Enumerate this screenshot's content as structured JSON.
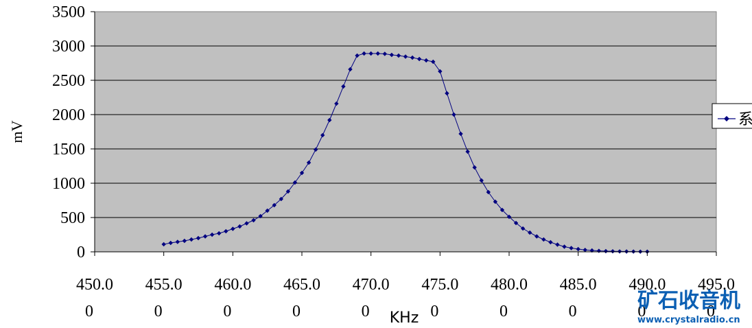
{
  "chart_data": {
    "type": "line",
    "xlabel": "KHz",
    "ylabel": "mV",
    "xlim": [
      450,
      495
    ],
    "ylim": [
      0,
      3500
    ],
    "x_ticks": [
      450,
      455,
      460,
      465,
      470,
      475,
      480,
      485,
      490,
      495
    ],
    "x_tick_labels": [
      [
        "450.0",
        "0"
      ],
      [
        "455.0",
        "0"
      ],
      [
        "460.0",
        "0"
      ],
      [
        "465.0",
        "0"
      ],
      [
        "470.0",
        "0"
      ],
      [
        "475.0",
        "0"
      ],
      [
        "480.0",
        "0"
      ],
      [
        "485.0",
        "0"
      ],
      [
        "490.0",
        "0"
      ],
      [
        "495.0",
        "0"
      ]
    ],
    "y_ticks": [
      0,
      500,
      1000,
      1500,
      2000,
      2500,
      3000,
      3500
    ],
    "y_tick_labels": [
      "0",
      "500",
      "1000",
      "1500",
      "2000",
      "2500",
      "3000",
      "3500"
    ],
    "grid": true,
    "legend_position": "right (clipped)",
    "legend_label": "系",
    "series": [
      {
        "color": "#000080",
        "x": [
          455,
          455.5,
          456,
          456.5,
          457,
          457.5,
          458,
          458.5,
          459,
          459.5,
          460,
          460.5,
          461,
          461.5,
          462,
          462.5,
          463,
          463.5,
          464,
          464.5,
          465,
          465.5,
          466,
          466.5,
          467,
          467.5,
          468,
          468.5,
          469,
          469.5,
          470,
          470.5,
          471,
          471.5,
          472,
          472.5,
          473,
          473.5,
          474,
          474.5,
          475,
          475.5,
          476,
          476.5,
          477,
          477.5,
          478,
          478.5,
          479,
          479.5,
          480,
          480.5,
          481,
          481.5,
          482,
          482.5,
          483,
          483.5,
          484,
          484.5,
          485,
          485.5,
          486,
          486.5,
          487,
          487.5,
          488,
          488.5,
          489,
          489.5,
          490
        ],
        "y": [
          110,
          130,
          145,
          160,
          180,
          200,
          225,
          250,
          270,
          300,
          335,
          370,
          415,
          460,
          520,
          600,
          680,
          770,
          880,
          1010,
          1150,
          1300,
          1490,
          1700,
          1920,
          2160,
          2410,
          2660,
          2860,
          2890,
          2890,
          2890,
          2885,
          2870,
          2860,
          2845,
          2830,
          2810,
          2790,
          2770,
          2630,
          2310,
          2000,
          1720,
          1460,
          1230,
          1040,
          870,
          730,
          610,
          510,
          420,
          340,
          280,
          225,
          180,
          140,
          105,
          75,
          55,
          40,
          28,
          20,
          14,
          10,
          8,
          6,
          5,
          4,
          3,
          3
        ]
      }
    ]
  },
  "watermark": {
    "text_cn": "矿石收音机",
    "url": "www.crystalradio.cn"
  }
}
